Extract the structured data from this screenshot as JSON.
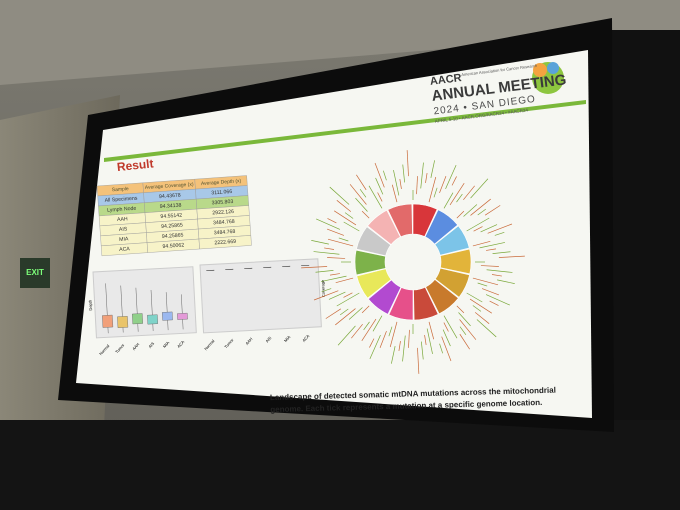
{
  "header": {
    "org": "AACR",
    "org_full": "American Association for Cancer Research",
    "title": "ANNUAL MEETING",
    "subtitle": "2024 • SAN DIEGO",
    "dates": "APRIL 5-10 • AACR.ORG/AACR24 • #AACR24"
  },
  "slide": {
    "heading": "Result",
    "table": {
      "columns": [
        "Sample",
        "Average Coverage (x)",
        "Average Depth (x)"
      ],
      "rows": [
        [
          "All Specimens",
          "94.43678",
          "3111.066"
        ],
        [
          "Lymph Node",
          "94.34138",
          "3305.803"
        ],
        [
          "AAH",
          "94.55142",
          "2922.126"
        ],
        [
          "AIS",
          "94.25865",
          "3484.768"
        ],
        [
          "MIA",
          "94.25865",
          "3484.768"
        ],
        [
          "ACA",
          "94.50062",
          "2222.669"
        ]
      ]
    },
    "boxplot": {
      "y_label": "Depth",
      "categories": [
        "Normal",
        "Tumor",
        "AAH",
        "AIS",
        "MIA",
        "ACA"
      ]
    },
    "coverage_plot": {
      "y_label": "Coverage",
      "categories": [
        "Normal",
        "Tumor",
        "AAH",
        "AIS",
        "MIA",
        "ACA"
      ]
    },
    "caption": [
      "Landscape of detected somatic mtDNA mutations across the mitochondrial",
      "genome. Each tick represents a mutation at a specific genome location."
    ]
  },
  "room": {
    "exit_sign": "EXIT"
  }
}
